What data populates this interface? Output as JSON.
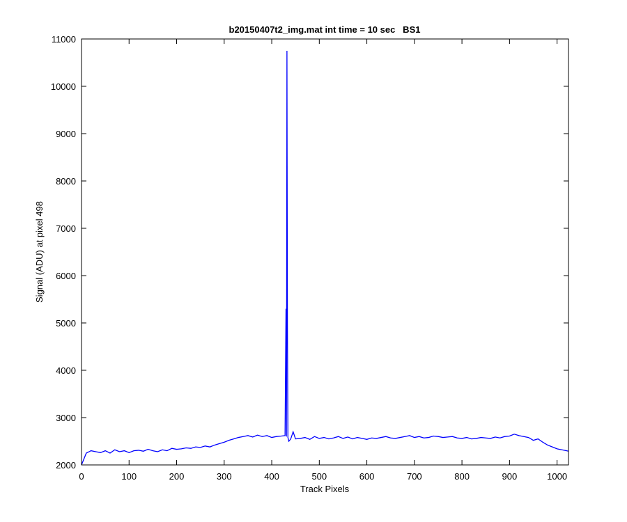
{
  "chart_data": {
    "type": "line",
    "title": "b20150407t2_img.mat int time = 10 sec   BS1",
    "xlabel": "Track Pixels",
    "ylabel": "Signal (ADU) at pixel 498",
    "xlim": [
      0,
      1024
    ],
    "ylim": [
      2000,
      11000
    ],
    "xticks": [
      0,
      100,
      200,
      300,
      400,
      500,
      600,
      700,
      800,
      900,
      1000
    ],
    "yticks": [
      2000,
      3000,
      4000,
      5000,
      6000,
      7000,
      8000,
      9000,
      10000,
      11000
    ],
    "grid": false,
    "line_color": "#0000ff",
    "series": [
      {
        "x": [
          0,
          10,
          20,
          30,
          40,
          50,
          60,
          70,
          80,
          90,
          100,
          110,
          120,
          130,
          140,
          150,
          160,
          170,
          180,
          190,
          200,
          210,
          220,
          230,
          240,
          250,
          260,
          270,
          280,
          290,
          300,
          310,
          320,
          330,
          340,
          350,
          360,
          370,
          380,
          390,
          400,
          410,
          420,
          428,
          430,
          431,
          432,
          433,
          434,
          436,
          440,
          445,
          450,
          460,
          470,
          480,
          490,
          500,
          510,
          520,
          530,
          540,
          550,
          560,
          570,
          580,
          590,
          600,
          610,
          620,
          630,
          640,
          650,
          660,
          670,
          680,
          690,
          700,
          710,
          720,
          730,
          740,
          750,
          760,
          770,
          780,
          790,
          800,
          810,
          820,
          830,
          840,
          850,
          860,
          870,
          880,
          890,
          900,
          910,
          920,
          930,
          940,
          950,
          960,
          970,
          980,
          990,
          1000,
          1010,
          1020,
          1024
        ],
        "y": [
          2000,
          2250,
          2300,
          2280,
          2260,
          2300,
          2250,
          2320,
          2280,
          2300,
          2260,
          2300,
          2310,
          2290,
          2330,
          2300,
          2280,
          2320,
          2300,
          2350,
          2330,
          2340,
          2360,
          2350,
          2380,
          2370,
          2400,
          2380,
          2420,
          2450,
          2480,
          2520,
          2550,
          2580,
          2600,
          2620,
          2590,
          2630,
          2600,
          2620,
          2580,
          2600,
          2610,
          2620,
          5300,
          2600,
          10750,
          4950,
          2580,
          2500,
          2550,
          2700,
          2550,
          2560,
          2580,
          2540,
          2600,
          2560,
          2580,
          2550,
          2570,
          2600,
          2560,
          2590,
          2550,
          2580,
          2560,
          2540,
          2570,
          2560,
          2580,
          2600,
          2570,
          2560,
          2580,
          2600,
          2620,
          2580,
          2600,
          2570,
          2580,
          2610,
          2600,
          2580,
          2590,
          2600,
          2570,
          2560,
          2580,
          2550,
          2560,
          2580,
          2570,
          2560,
          2590,
          2570,
          2600,
          2610,
          2650,
          2620,
          2600,
          2580,
          2520,
          2550,
          2480,
          2420,
          2380,
          2340,
          2320,
          2300,
          2290
        ]
      }
    ]
  }
}
